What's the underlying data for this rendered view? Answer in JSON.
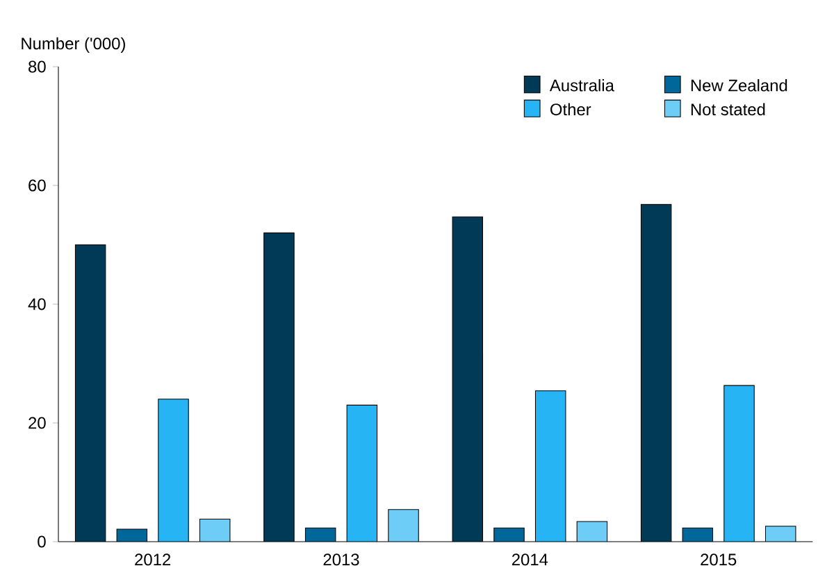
{
  "chart_data": {
    "type": "bar",
    "ylabel": "Number ('000)",
    "categories": [
      "2012",
      "2013",
      "2014",
      "2015"
    ],
    "series": [
      {
        "name": "Australia",
        "color": "#003a57",
        "values": [
          50,
          52,
          54.7,
          56.8
        ]
      },
      {
        "name": "New Zealand",
        "color": "#00679a",
        "values": [
          2.1,
          2.3,
          2.3,
          2.3
        ]
      },
      {
        "name": "Other",
        "color": "#27b4f5",
        "values": [
          24,
          23,
          25.4,
          26.3
        ]
      },
      {
        "name": "Not stated",
        "color": "#6dcdf7",
        "values": [
          3.8,
          5.4,
          3.4,
          2.6
        ]
      }
    ],
    "ylim": [
      0,
      80
    ],
    "yticks": [
      0,
      20,
      40,
      60,
      80
    ],
    "grid": false,
    "legend": "top right"
  }
}
